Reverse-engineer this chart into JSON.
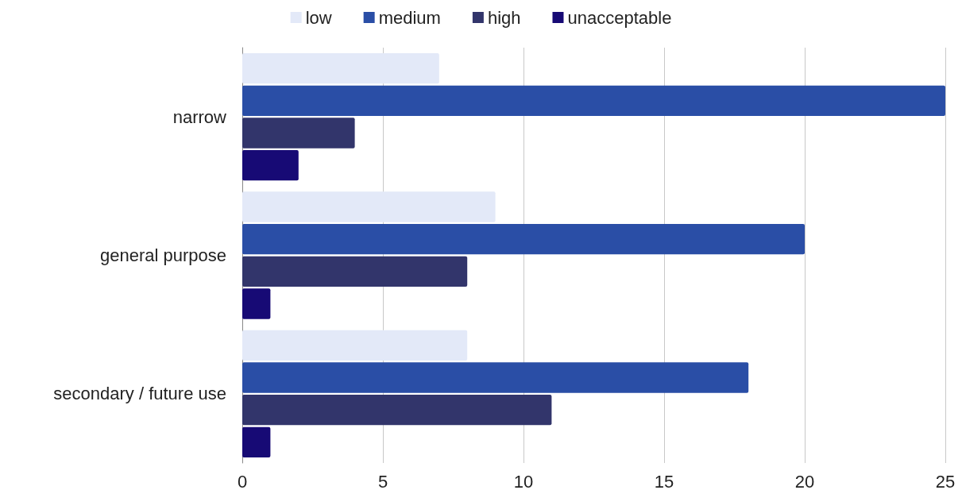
{
  "chart_data": {
    "type": "bar",
    "orientation": "horizontal",
    "categories": [
      "narrow",
      "general purpose",
      "secondary / future use"
    ],
    "series": [
      {
        "name": "low",
        "color": "#e3e9f8",
        "values": [
          7,
          9,
          8
        ]
      },
      {
        "name": "medium",
        "color": "#2a4ea6",
        "values": [
          25,
          20,
          18
        ]
      },
      {
        "name": "high",
        "color": "#32356b",
        "values": [
          4,
          8,
          11
        ]
      },
      {
        "name": "unacceptable",
        "color": "#170a75",
        "values": [
          2,
          1,
          1
        ]
      }
    ],
    "xlim": [
      0,
      25
    ],
    "xticks": [
      0,
      5,
      10,
      15,
      20,
      25
    ],
    "grid": "x",
    "legend": "top"
  }
}
